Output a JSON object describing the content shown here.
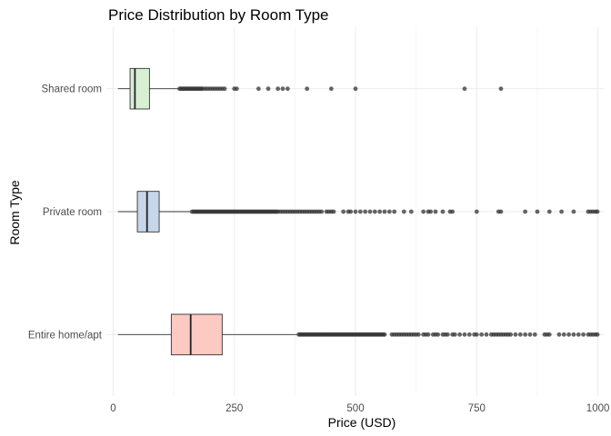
{
  "chart_data": {
    "type": "boxplot",
    "orientation": "horizontal",
    "title": "Price Distribution by Room Type",
    "xlabel": "Price (USD)",
    "ylabel": "Room Type",
    "xlim": [
      -12,
      1012
    ],
    "xticks": [
      0,
      250,
      500,
      750,
      1000
    ],
    "grid": true,
    "legend": "none",
    "categories": [
      "Entire home/apt",
      "Private room",
      "Shared room"
    ],
    "series": [
      {
        "name": "Entire home/apt",
        "color": "#f8766d",
        "fill": "#fcc9c3",
        "min": 10,
        "q1": 120,
        "median": 160,
        "q3": 225,
        "max": 380,
        "outliers": [
          383,
          386,
          389,
          392,
          395,
          398,
          401,
          404,
          407,
          410,
          413,
          416,
          419,
          422,
          425,
          428,
          431,
          434,
          437,
          440,
          443,
          446,
          449,
          452,
          455,
          458,
          461,
          464,
          467,
          470,
          473,
          476,
          479,
          482,
          485,
          488,
          491,
          494,
          497,
          500,
          503,
          506,
          509,
          512,
          515,
          518,
          521,
          524,
          527,
          530,
          533,
          536,
          539,
          542,
          545,
          548,
          551,
          554,
          557,
          560,
          575,
          580,
          585,
          590,
          595,
          600,
          605,
          610,
          615,
          620,
          625,
          630,
          640,
          645,
          650,
          660,
          665,
          670,
          680,
          685,
          690,
          700,
          705,
          715,
          725,
          735,
          745,
          750,
          760,
          770,
          780,
          785,
          790,
          795,
          800,
          805,
          810,
          815,
          820,
          830,
          840,
          850,
          860,
          870,
          890,
          895,
          900,
          920,
          930,
          940,
          950,
          960,
          970,
          980,
          985,
          990,
          995,
          999
        ]
      },
      {
        "name": "Private room",
        "color": "#619cff",
        "fill": "#c6d7ea",
        "min": 10,
        "q1": 50,
        "median": 70,
        "q3": 95,
        "max": 160,
        "outliers": [
          163,
          166,
          169,
          172,
          175,
          178,
          181,
          184,
          187,
          190,
          193,
          196,
          199,
          202,
          205,
          208,
          211,
          214,
          217,
          220,
          223,
          226,
          229,
          232,
          235,
          238,
          241,
          244,
          247,
          250,
          253,
          256,
          259,
          262,
          265,
          268,
          271,
          274,
          277,
          280,
          283,
          286,
          289,
          292,
          295,
          298,
          301,
          304,
          307,
          310,
          313,
          316,
          319,
          322,
          325,
          328,
          331,
          334,
          337,
          340,
          345,
          350,
          355,
          360,
          365,
          370,
          375,
          380,
          385,
          390,
          395,
          400,
          405,
          410,
          415,
          420,
          425,
          430,
          440,
          445,
          450,
          455,
          475,
          485,
          490,
          500,
          510,
          520,
          530,
          540,
          550,
          560,
          570,
          580,
          600,
          615,
          640,
          650,
          655,
          665,
          680,
          695,
          700,
          750,
          795,
          800,
          850,
          875,
          900,
          925,
          950,
          980,
          985,
          990,
          995,
          999
        ]
      },
      {
        "name": "Shared room",
        "color": "#00ba38",
        "fill": "#d9efd4",
        "min": 10,
        "q1": 35,
        "median": 45,
        "q3": 75,
        "max": 135,
        "outliers": [
          137,
          140,
          143,
          146,
          149,
          152,
          155,
          158,
          161,
          164,
          167,
          170,
          173,
          176,
          179,
          182,
          185,
          190,
          195,
          200,
          205,
          210,
          215,
          220,
          225,
          230,
          250,
          255,
          300,
          320,
          340,
          350,
          360,
          400,
          450,
          500,
          725,
          800
        ]
      }
    ]
  }
}
